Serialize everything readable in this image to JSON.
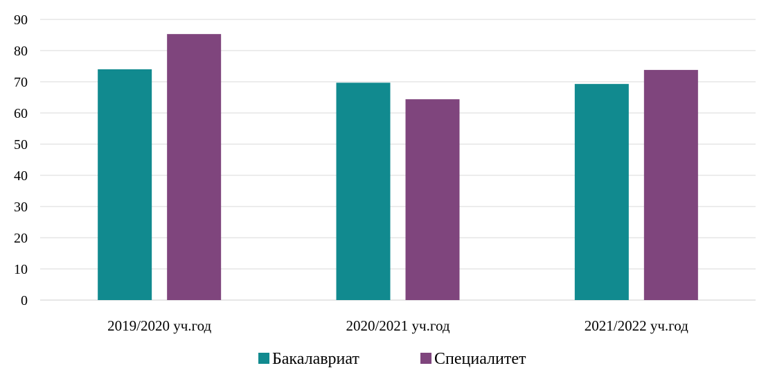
{
  "chart_data": {
    "type": "bar",
    "title": "",
    "xlabel": "",
    "ylabel": "",
    "categories": [
      "2019/2020 уч.год",
      "2020/2021 уч.год",
      "2021/2022 уч.год"
    ],
    "series": [
      {
        "name": "Бакалавриат",
        "values": [
          74,
          69.7,
          69.3
        ],
        "color": "#118a8f"
      },
      {
        "name": "Специалитет",
        "values": [
          85.3,
          64.4,
          73.8
        ],
        "color": "#7f457d"
      }
    ],
    "ylim": [
      0,
      90
    ],
    "yticks": [
      0,
      10,
      20,
      30,
      40,
      50,
      60,
      70,
      80,
      90
    ],
    "grid": true,
    "legend": "bottom"
  }
}
